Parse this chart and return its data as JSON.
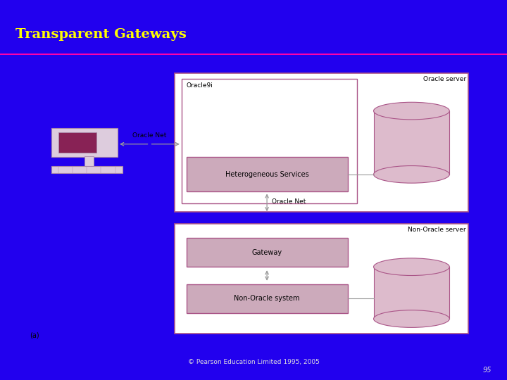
{
  "title": "Transparent Gateways",
  "title_color": "#FFFF00",
  "title_fontsize": 14,
  "bg_color": "#2200EE",
  "slide_bg": "#2200EE",
  "white_area": "#FFFFFF",
  "pink_line_color": "#FF00AA",
  "copyright": "© Pearson Education Limited 1995, 2005",
  "page_num": "95",
  "box_outline_color": "#AA5588",
  "box_fill_inner": "#CCAABB",
  "text_color": "#000000",
  "arrow_color": "#999999",
  "oracle_server_label": "Oracle server",
  "oracle9i_label": "Oracle9i",
  "het_services_label": "Heterogeneous Services",
  "oracle_net_label1": "Oracle Net",
  "oracle_net_label2": "Oracle Net",
  "non_oracle_server_label": "Non-Oracle server",
  "gateway_label": "Gateway",
  "non_oracle_system_label": "Non-Oracle system",
  "fig_label": "(a)"
}
